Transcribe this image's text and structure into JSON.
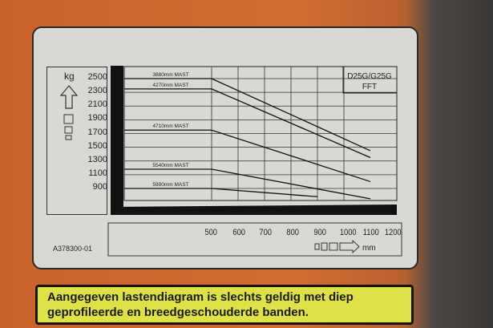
{
  "plate": {
    "part_number": "A378300-01",
    "model": "D25G/G25G",
    "model_sub": "FFT",
    "unit_y": "kg",
    "unit_x": "mm"
  },
  "sticker": {
    "line1": "Aangegeven lastendiagram is slechts geldig met diep",
    "line2": "geprofileerde en breedgeschouderde banden."
  },
  "chart_data": {
    "type": "line",
    "xlabel": "mm",
    "ylabel": "kg",
    "x_ticks": [
      500,
      600,
      700,
      800,
      900,
      1000,
      1100,
      1200
    ],
    "x_tick_labels": [
      "500",
      "600",
      "700",
      "800",
      "900",
      "1000",
      "1100",
      "1200"
    ],
    "y_ticks": [
      2500,
      2300,
      2100,
      1900,
      1700,
      1500,
      1300,
      1100,
      900
    ],
    "y_tick_labels": [
      "2500",
      "2300",
      "2100",
      "1900",
      "1700",
      "1500",
      "1300",
      "1100",
      "900"
    ],
    "xlim": [
      500,
      1200
    ],
    "ylim": [
      800,
      2500
    ],
    "grid": true,
    "series": [
      {
        "name": "3880mm MAST",
        "points": [
          [
            500,
            2500
          ],
          [
            600,
            2500
          ],
          [
            1200,
            1450
          ]
        ]
      },
      {
        "name": "4270mm MAST",
        "points": [
          [
            500,
            2350
          ],
          [
            600,
            2350
          ],
          [
            1200,
            1350
          ]
        ]
      },
      {
        "name": "4710mm MAST",
        "points": [
          [
            500,
            1750
          ],
          [
            600,
            1750
          ],
          [
            1200,
            1000
          ]
        ]
      },
      {
        "name": "5540mm MAST",
        "points": [
          [
            500,
            1180
          ],
          [
            600,
            1180
          ],
          [
            1200,
            750
          ]
        ]
      },
      {
        "name": "5990mm MAST",
        "points": [
          [
            500,
            900
          ],
          [
            600,
            900
          ],
          [
            1000,
            780
          ]
        ]
      }
    ]
  }
}
